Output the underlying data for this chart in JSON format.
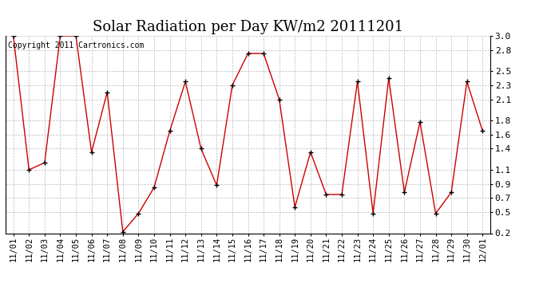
{
  "title": "Solar Radiation per Day KW/m2 20111201",
  "copyright": "Copyright 2011 Cartronics.com",
  "dates": [
    "11/01",
    "11/02",
    "11/03",
    "11/04",
    "11/05",
    "11/06",
    "11/07",
    "11/08",
    "11/09",
    "11/10",
    "11/11",
    "11/12",
    "11/13",
    "11/14",
    "11/15",
    "11/16",
    "11/17",
    "11/18",
    "11/19",
    "11/20",
    "11/21",
    "11/22",
    "11/23",
    "11/24",
    "11/25",
    "11/26",
    "11/27",
    "11/28",
    "11/29",
    "11/30",
    "12/01"
  ],
  "values": [
    3.0,
    1.1,
    1.2,
    3.0,
    3.0,
    1.35,
    2.2,
    0.22,
    0.48,
    0.85,
    1.65,
    2.35,
    1.4,
    0.88,
    2.3,
    2.75,
    2.75,
    2.1,
    0.57,
    1.35,
    0.75,
    0.75,
    2.35,
    0.48,
    2.4,
    0.78,
    1.78,
    0.48,
    0.78,
    2.35,
    1.65
  ],
  "line_color": "#cc0000",
  "marker": "+",
  "marker_color": "#000000",
  "bg_color": "#ffffff",
  "grid_color": "#bbbbbb",
  "ylim": [
    0.2,
    3.0
  ],
  "yticks": [
    0.2,
    0.5,
    0.7,
    0.9,
    1.1,
    1.4,
    1.6,
    1.8,
    2.1,
    2.3,
    2.5,
    2.8,
    3.0
  ],
  "title_fontsize": 13,
  "copyright_fontsize": 7,
  "tick_fontsize": 7.5,
  "ytick_fontsize": 8
}
